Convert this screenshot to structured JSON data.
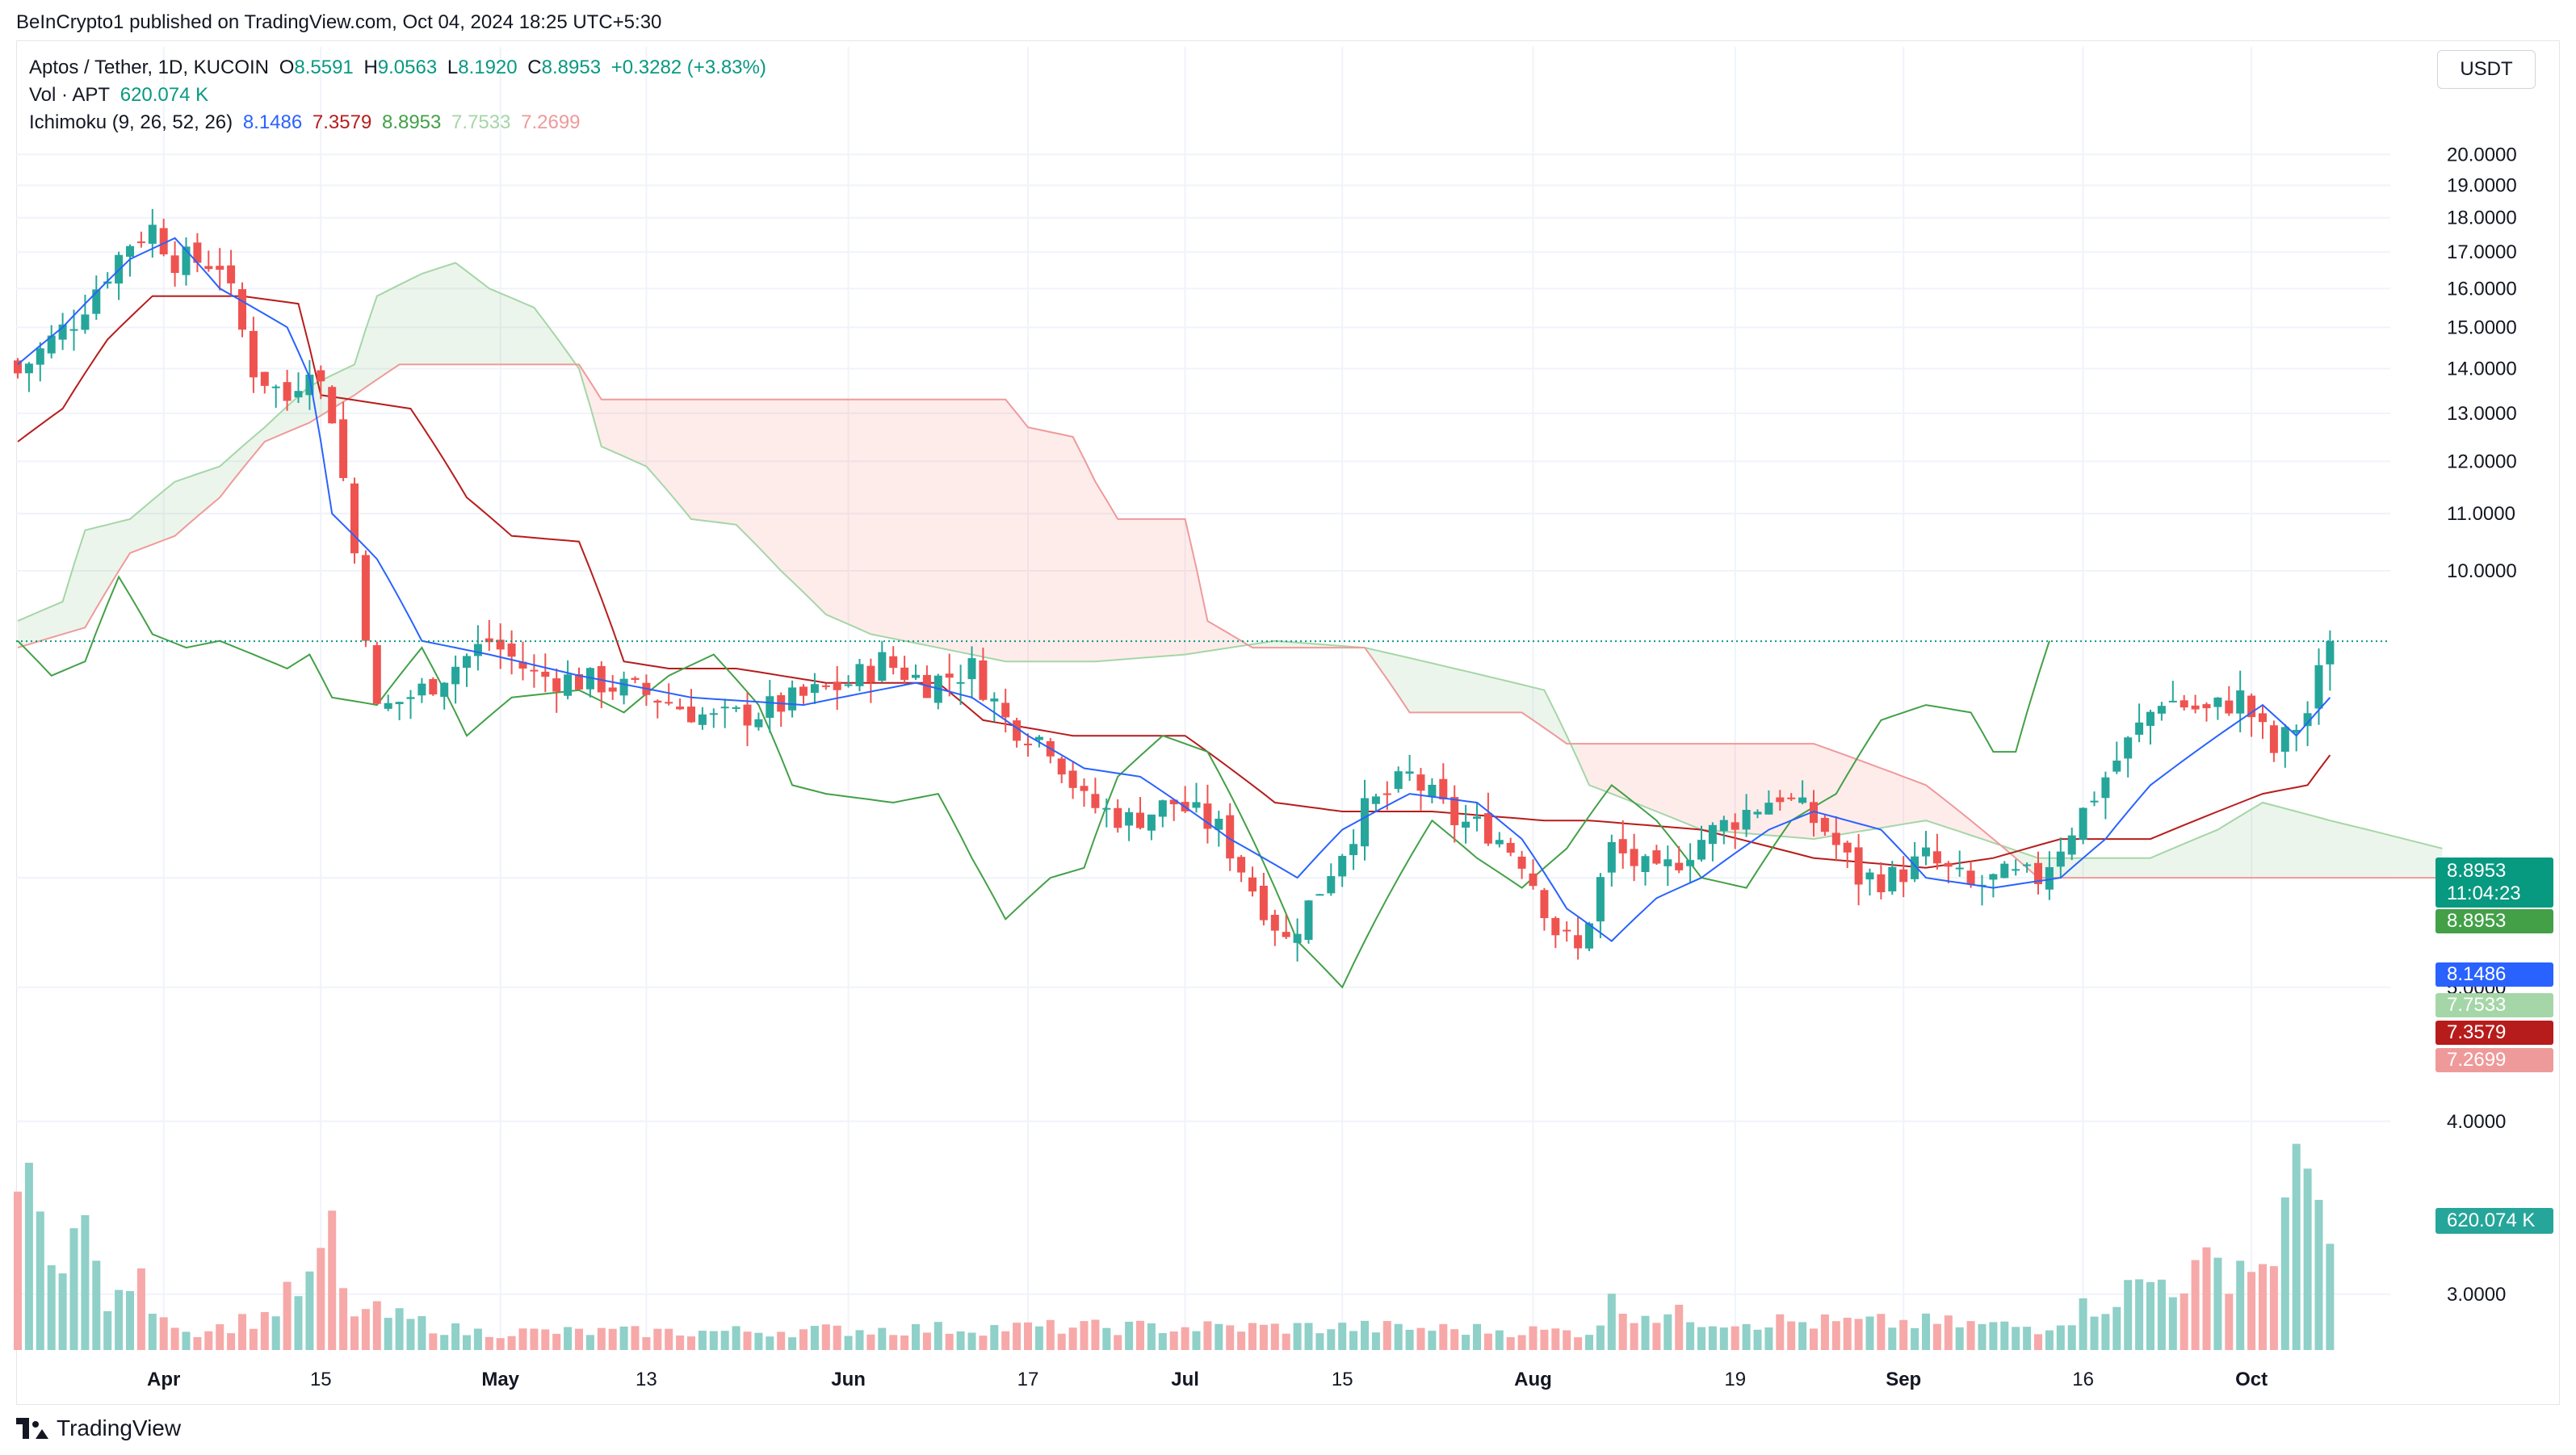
{
  "header": {
    "publisher": "BeInCrypto1 published on TradingView.com, Oct 04, 2024 18:25 UTC+5:30"
  },
  "legend": {
    "symbol": "Aptos / Tether, 1D, KUCOIN",
    "o_label": "O",
    "o": "8.5591",
    "h_label": "H",
    "h": "9.0563",
    "l_label": "L",
    "l": "8.1920",
    "c_label": "C",
    "c": "8.8953",
    "change": "+0.3282 (+3.83%)",
    "vol_label": "Vol · APT",
    "vol": "620.074 K",
    "ichi_label": "Ichimoku (9, 26, 52, 26)",
    "ichi_conv": "8.1486",
    "ichi_base": "7.3579",
    "ichi_lag": "8.8953",
    "ichi_spanA": "7.7533",
    "ichi_spanB": "7.2699"
  },
  "currency": "USDT",
  "colors": {
    "up": "#26a69a",
    "down": "#ef5350",
    "conversion": "#2962ff",
    "base": "#b71c1c",
    "lagging": "#43a047",
    "spanA": "#a5d6a7",
    "spanB": "#ef9a9a",
    "volUp": "#8fd0c8",
    "volDown": "#f6a9a8",
    "last": "#089981"
  },
  "price_tags": {
    "last": "8.8953",
    "countdown": "11:04:23",
    "lagging": "8.8953",
    "conversion": "8.1486",
    "spanA": "7.7533",
    "base": "7.3579",
    "spanB": "7.2699",
    "volume": "620.074 K"
  },
  "footer": {
    "brand": "TradingView"
  },
  "chart_data": {
    "type": "candlestick",
    "title": "Aptos / Tether, 1D, KUCOIN",
    "y_axis": {
      "ticks": [
        "20.0000",
        "19.0000",
        "18.0000",
        "17.0000",
        "16.0000",
        "15.0000",
        "14.0000",
        "13.0000",
        "12.0000",
        "11.0000",
        "10.0000",
        "6.0000",
        "5.0000",
        "4.0000",
        "3.0000"
      ],
      "scale": "log",
      "range": [
        2.85,
        21.0
      ]
    },
    "x_axis": {
      "ticks": [
        "Apr",
        "15",
        "May",
        "13",
        "Jun",
        "17",
        "Jul",
        "15",
        "Aug",
        "19",
        "Sep",
        "16",
        "Oct"
      ],
      "major": [
        "Apr",
        "May",
        "Jun",
        "Jul",
        "Aug",
        "Sep",
        "Oct"
      ]
    },
    "grid": true,
    "series_anchors": {
      "close": [
        [
          0,
          13.9
        ],
        [
          5,
          15.2
        ],
        [
          10,
          17.3
        ],
        [
          12,
          17.7
        ],
        [
          14,
          16.8
        ],
        [
          18,
          16.7
        ],
        [
          21,
          14.0
        ],
        [
          24,
          13.3
        ],
        [
          26,
          14.2
        ],
        [
          28,
          13.0
        ],
        [
          30,
          10.3
        ],
        [
          32,
          7.9
        ],
        [
          36,
          8.2
        ],
        [
          42,
          8.9
        ],
        [
          46,
          8.4
        ],
        [
          52,
          8.3
        ],
        [
          57,
          8.1
        ],
        [
          62,
          7.8
        ],
        [
          66,
          7.9
        ],
        [
          70,
          8.1
        ],
        [
          74,
          8.3
        ],
        [
          77,
          8.6
        ],
        [
          81,
          8.3
        ],
        [
          85,
          8.5
        ],
        [
          88,
          7.8
        ],
        [
          92,
          7.5
        ],
        [
          95,
          6.8
        ],
        [
          99,
          6.6
        ],
        [
          103,
          6.8
        ],
        [
          107,
          6.5
        ],
        [
          110,
          5.9
        ],
        [
          113,
          5.4
        ],
        [
          116,
          5.9
        ],
        [
          120,
          6.7
        ],
        [
          124,
          7.1
        ],
        [
          128,
          6.6
        ],
        [
          131,
          6.5
        ],
        [
          134,
          6.2
        ],
        [
          137,
          5.5
        ],
        [
          139,
          5.3
        ],
        [
          142,
          6.3
        ],
        [
          146,
          6.0
        ],
        [
          150,
          6.4
        ],
        [
          154,
          6.7
        ],
        [
          157,
          6.9
        ],
        [
          161,
          6.5
        ],
        [
          164,
          6.0
        ],
        [
          167,
          6.0
        ],
        [
          170,
          6.2
        ],
        [
          174,
          5.9
        ],
        [
          177,
          6.0
        ],
        [
          180,
          6.0
        ],
        [
          184,
          6.7
        ],
        [
          186,
          7.1
        ],
        [
          188,
          7.5
        ],
        [
          191,
          8.1
        ],
        [
          195,
          7.9
        ],
        [
          198,
          8.1
        ],
        [
          201,
          7.4
        ],
        [
          204,
          7.9
        ],
        [
          206,
          8.9
        ]
      ],
      "conversion_line": [
        [
          0,
          14.1
        ],
        [
          4,
          15.0
        ],
        [
          10,
          16.8
        ],
        [
          14,
          17.4
        ],
        [
          18,
          16.0
        ],
        [
          24,
          15.0
        ],
        [
          26,
          13.8
        ],
        [
          28,
          11.0
        ],
        [
          32,
          10.2
        ],
        [
          36,
          8.9
        ],
        [
          42,
          8.7
        ],
        [
          50,
          8.4
        ],
        [
          60,
          8.1
        ],
        [
          70,
          8.0
        ],
        [
          80,
          8.3
        ],
        [
          85,
          8.1
        ],
        [
          90,
          7.6
        ],
        [
          95,
          7.2
        ],
        [
          100,
          7.1
        ],
        [
          108,
          6.4
        ],
        [
          114,
          6.0
        ],
        [
          118,
          6.5
        ],
        [
          124,
          6.9
        ],
        [
          130,
          6.8
        ],
        [
          134,
          6.4
        ],
        [
          138,
          5.7
        ],
        [
          142,
          5.4
        ],
        [
          146,
          5.8
        ],
        [
          150,
          6.0
        ],
        [
          156,
          6.5
        ],
        [
          160,
          6.7
        ],
        [
          166,
          6.5
        ],
        [
          170,
          6.0
        ],
        [
          176,
          5.9
        ],
        [
          182,
          6.0
        ],
        [
          186,
          6.4
        ],
        [
          190,
          7.0
        ],
        [
          196,
          7.6
        ],
        [
          200,
          8.0
        ],
        [
          203,
          7.6
        ],
        [
          206,
          8.1
        ]
      ],
      "base_line": [
        [
          0,
          12.4
        ],
        [
          4,
          13.1
        ],
        [
          8,
          14.7
        ],
        [
          12,
          15.8
        ],
        [
          20,
          15.8
        ],
        [
          25,
          15.6
        ],
        [
          27,
          13.4
        ],
        [
          35,
          13.1
        ],
        [
          40,
          11.3
        ],
        [
          44,
          10.6
        ],
        [
          50,
          10.5
        ],
        [
          54,
          8.6
        ],
        [
          58,
          8.5
        ],
        [
          64,
          8.5
        ],
        [
          72,
          8.3
        ],
        [
          82,
          8.3
        ],
        [
          86,
          7.8
        ],
        [
          94,
          7.6
        ],
        [
          104,
          7.6
        ],
        [
          112,
          6.8
        ],
        [
          118,
          6.7
        ],
        [
          126,
          6.7
        ],
        [
          136,
          6.6
        ],
        [
          140,
          6.6
        ],
        [
          150,
          6.5
        ],
        [
          160,
          6.2
        ],
        [
          170,
          6.1
        ],
        [
          176,
          6.2
        ],
        [
          182,
          6.4
        ],
        [
          190,
          6.4
        ],
        [
          196,
          6.7
        ],
        [
          200,
          6.9
        ],
        [
          204,
          7.0
        ],
        [
          206,
          7.36
        ]
      ],
      "lagging_span": [
        [
          0,
          8.9
        ],
        [
          3,
          8.4
        ],
        [
          6,
          8.6
        ],
        [
          9,
          9.9
        ],
        [
          12,
          9.0
        ],
        [
          15,
          8.8
        ],
        [
          18,
          8.9
        ],
        [
          21,
          8.7
        ],
        [
          24,
          8.5
        ],
        [
          26,
          8.7
        ],
        [
          28,
          8.1
        ],
        [
          32,
          8.0
        ],
        [
          36,
          8.8
        ],
        [
          40,
          7.6
        ],
        [
          44,
          8.1
        ],
        [
          50,
          8.2
        ],
        [
          54,
          7.9
        ],
        [
          58,
          8.4
        ],
        [
          62,
          8.7
        ],
        [
          66,
          8.0
        ],
        [
          69,
          7.0
        ],
        [
          72,
          6.9
        ],
        [
          78,
          6.8
        ],
        [
          82,
          6.9
        ],
        [
          85,
          6.2
        ],
        [
          88,
          5.6
        ],
        [
          92,
          6.0
        ],
        [
          95,
          6.1
        ],
        [
          98,
          7.1
        ],
        [
          102,
          7.6
        ],
        [
          106,
          7.4
        ],
        [
          110,
          6.4
        ],
        [
          114,
          5.4
        ],
        [
          118,
          5.0
        ],
        [
          122,
          5.8
        ],
        [
          126,
          6.6
        ],
        [
          130,
          6.2
        ],
        [
          134,
          5.9
        ],
        [
          138,
          6.3
        ],
        [
          142,
          7.0
        ],
        [
          146,
          6.6
        ],
        [
          150,
          6.0
        ],
        [
          154,
          5.9
        ],
        [
          158,
          6.6
        ],
        [
          162,
          6.9
        ],
        [
          166,
          7.8
        ],
        [
          170,
          8.0
        ],
        [
          174,
          7.9
        ],
        [
          176,
          7.4
        ],
        [
          178,
          7.4
        ],
        [
          181,
          8.9
        ]
      ],
      "span_a": [
        [
          0,
          9.2
        ],
        [
          4,
          9.5
        ],
        [
          6,
          10.7
        ],
        [
          10,
          10.9
        ],
        [
          14,
          11.6
        ],
        [
          18,
          11.9
        ],
        [
          22,
          12.7
        ],
        [
          26,
          13.6
        ],
        [
          30,
          14.1
        ],
        [
          32,
          15.8
        ],
        [
          36,
          16.4
        ],
        [
          39,
          16.7
        ],
        [
          42,
          16.0
        ],
        [
          46,
          15.5
        ],
        [
          50,
          14.0
        ],
        [
          52,
          12.3
        ],
        [
          56,
          11.9
        ],
        [
          60,
          10.9
        ],
        [
          64,
          10.8
        ],
        [
          68,
          10.0
        ],
        [
          72,
          9.3
        ],
        [
          76,
          9.0
        ],
        [
          82,
          8.8
        ],
        [
          88,
          8.6
        ],
        [
          96,
          8.6
        ],
        [
          104,
          8.7
        ],
        [
          112,
          8.9
        ],
        [
          120,
          8.8
        ],
        [
          128,
          8.5
        ],
        [
          136,
          8.2
        ],
        [
          140,
          7.0
        ],
        [
          144,
          6.8
        ],
        [
          150,
          6.5
        ],
        [
          160,
          6.4
        ],
        [
          170,
          6.6
        ],
        [
          180,
          6.2
        ],
        [
          190,
          6.2
        ],
        [
          196,
          6.5
        ],
        [
          200,
          6.8
        ],
        [
          206,
          6.6
        ],
        [
          216,
          6.3
        ]
      ],
      "span_b": [
        [
          0,
          8.8
        ],
        [
          6,
          9.1
        ],
        [
          10,
          10.3
        ],
        [
          14,
          10.6
        ],
        [
          18,
          11.3
        ],
        [
          22,
          12.4
        ],
        [
          26,
          12.8
        ],
        [
          30,
          13.4
        ],
        [
          34,
          14.1
        ],
        [
          44,
          14.1
        ],
        [
          50,
          14.1
        ],
        [
          52,
          13.3
        ],
        [
          60,
          13.3
        ],
        [
          88,
          13.3
        ],
        [
          90,
          12.7
        ],
        [
          94,
          12.5
        ],
        [
          96,
          11.6
        ],
        [
          98,
          10.9
        ],
        [
          104,
          10.9
        ],
        [
          106,
          9.2
        ],
        [
          110,
          8.8
        ],
        [
          120,
          8.8
        ],
        [
          124,
          7.9
        ],
        [
          134,
          7.9
        ],
        [
          138,
          7.5
        ],
        [
          160,
          7.5
        ],
        [
          170,
          7.0
        ],
        [
          180,
          6.0
        ],
        [
          190,
          6.0
        ],
        [
          200,
          6.0
        ],
        [
          216,
          6.0
        ]
      ],
      "volume_shape": "peaks late March, mid April, early Aug, late Sep–Oct (~620.074 K last)"
    }
  }
}
